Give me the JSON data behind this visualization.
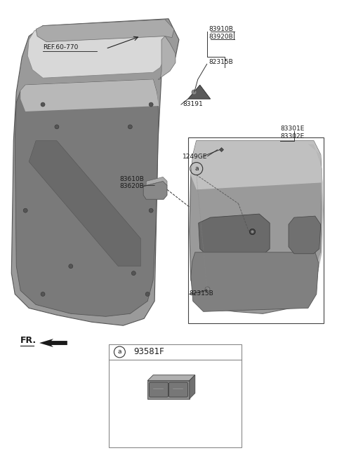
{
  "bg_color": "#ffffff",
  "fig_width": 4.8,
  "fig_height": 6.56,
  "dpi": 100,
  "labels": {
    "ref_60_770": "REF.60-770",
    "83910B": "83910B",
    "83920B": "83920B",
    "82315B_top": "82315B",
    "83191": "83191",
    "83301E": "83301E",
    "83302E": "83302E",
    "1249GE": "1249GE",
    "83610B": "83610B",
    "83620B": "83620B",
    "82315B_bot": "82315B",
    "FR": "FR.",
    "93581F": "93581F",
    "circle_a_main": "a",
    "circle_a_box": "a"
  },
  "text_color": "#1a1a1a",
  "line_color": "#1a1a1a",
  "font_size": 6.5,
  "font_size_ref": 7.0
}
